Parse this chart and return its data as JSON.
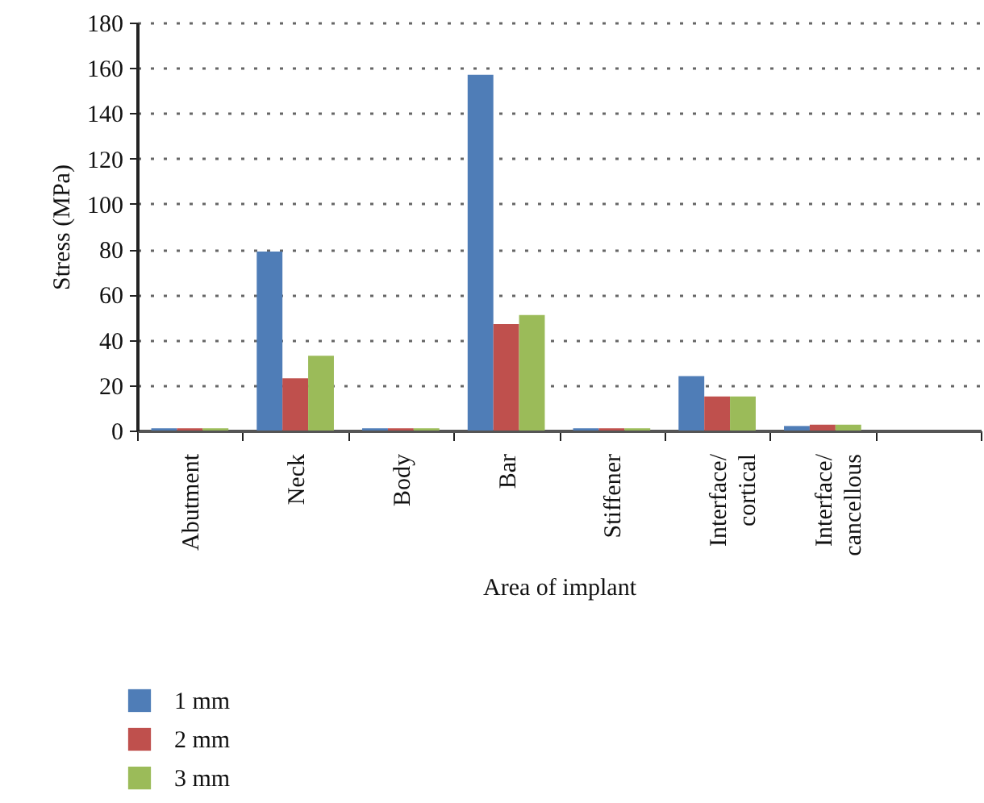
{
  "chart_data": {
    "type": "bar",
    "xlabel": "Area of implant",
    "ylabel": "Stress (MPa)",
    "categories": [
      "Abutment",
      "Neck",
      "Body",
      "Bar",
      "Stiffener",
      "Interface/cortical",
      "Interface/cancellous",
      null
    ],
    "series": [
      {
        "name": "1 mm",
        "color": "#4f7db7",
        "values": [
          1,
          79,
          1,
          157,
          1,
          24,
          2,
          null
        ]
      },
      {
        "name": "2 mm",
        "color": "#bf504d",
        "values": [
          1,
          23,
          1,
          47,
          1,
          15,
          2.6,
          null
        ]
      },
      {
        "name": "3 mm",
        "color": "#9bbb59",
        "values": [
          1,
          33,
          1,
          51,
          1,
          15,
          2.6,
          null
        ]
      }
    ],
    "ylim": [
      0,
      180
    ],
    "yticks": [
      0,
      20,
      40,
      60,
      80,
      100,
      120,
      140,
      160,
      180
    ],
    "grid": "y",
    "legend": "bottom"
  }
}
